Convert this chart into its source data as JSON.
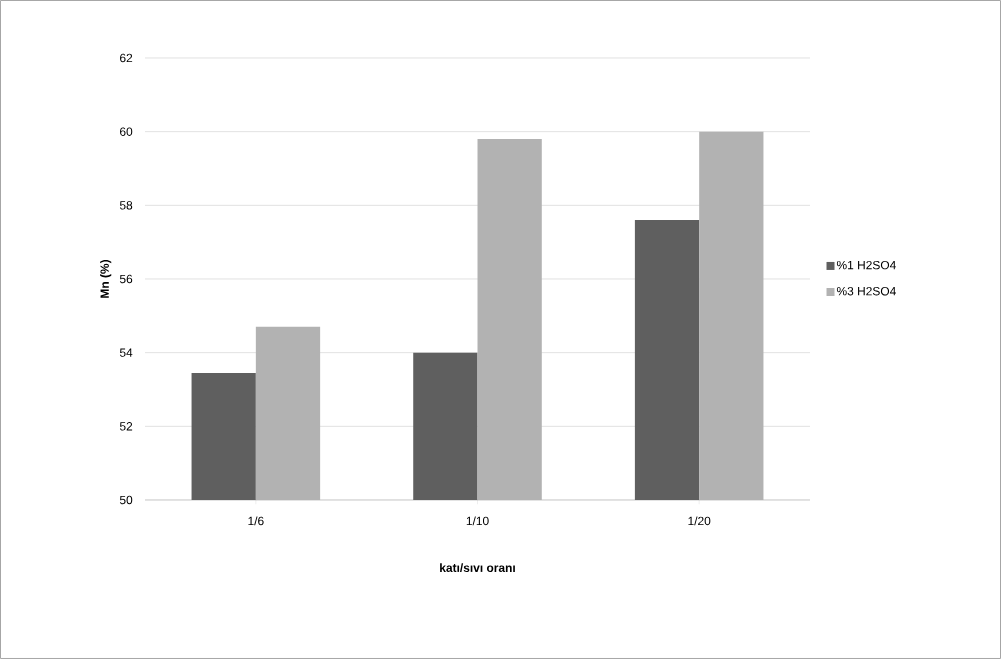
{
  "chart_data": {
    "type": "bar",
    "xlabel": "katı/sıvı oranı",
    "ylabel": "Mn (%)",
    "categories": [
      "1/6",
      "1/10",
      "1/20"
    ],
    "series": [
      {
        "name": "%1 H2SO4",
        "color": "#5f5f5f",
        "values": [
          53.45,
          54.0,
          57.6
        ]
      },
      {
        "name": "%3 H2SO4",
        "color": "#b2b2b2",
        "values": [
          54.7,
          59.8,
          60.0
        ]
      }
    ],
    "ylim": [
      50,
      62
    ],
    "yticks": [
      50,
      52,
      54,
      56,
      58,
      60,
      62
    ],
    "grid": "y",
    "legend": "right"
  }
}
